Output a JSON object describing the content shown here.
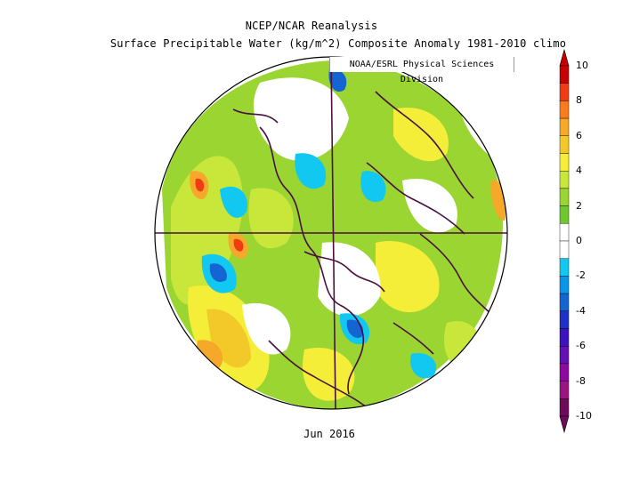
{
  "header": {
    "title": "NCEP/NCAR Reanalysis",
    "subtitle": "Surface Precipitable Water (kg/m^2) Composite Anomaly 1981-2010 climo",
    "credit": "NOAA/ESRL Physical Sciences Division"
  },
  "map": {
    "projection": "north-polar-stereographic",
    "date_label": "Jun 2016"
  },
  "colorbar": {
    "ticks": [
      "10",
      "8",
      "6",
      "4",
      "2",
      "0",
      "-2",
      "-4",
      "-6",
      "-8",
      "-10"
    ],
    "colors": [
      "#c80000",
      "#f03c14",
      "#fa7a1e",
      "#f5a82a",
      "#f3c92a",
      "#f5ee38",
      "#c9e63a",
      "#9ad532",
      "#6ec82e",
      "#ffffff",
      "#ffffff",
      "#12c8f0",
      "#0a96e8",
      "#1464d2",
      "#1e32c8",
      "#3c14be",
      "#6410b4",
      "#8c0aa0",
      "#9c1482",
      "#6e0a5a"
    ]
  }
}
